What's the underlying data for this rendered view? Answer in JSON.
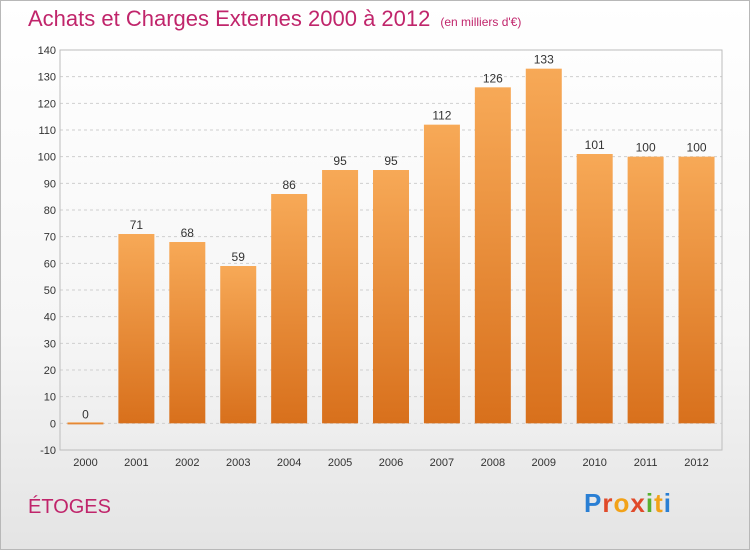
{
  "header": {
    "title": "Achats et Charges Externes 2000 à 2012",
    "subtitle": "(en milliers d'€)"
  },
  "commune": "ÉTOGES",
  "logo": {
    "text": "Proxiti"
  },
  "colors": {
    "bar_top": "#f7a957",
    "bar_bottom": "#d8701c",
    "title": "#c0256b"
  },
  "chart_data": {
    "type": "bar",
    "title": "Achats et Charges Externes 2000 à 2012",
    "subtitle": "(en milliers d'€)",
    "categories": [
      "2000",
      "2001",
      "2002",
      "2003",
      "2004",
      "2005",
      "2006",
      "2007",
      "2008",
      "2009",
      "2010",
      "2011",
      "2012"
    ],
    "values": [
      0,
      71,
      68,
      59,
      86,
      95,
      95,
      112,
      126,
      133,
      101,
      100,
      100
    ],
    "ylim": [
      -10,
      140
    ],
    "yticks": [
      -10,
      0,
      10,
      20,
      30,
      40,
      50,
      60,
      70,
      80,
      90,
      100,
      110,
      120,
      130,
      140
    ],
    "grid": true,
    "xlabel": "",
    "ylabel": ""
  }
}
